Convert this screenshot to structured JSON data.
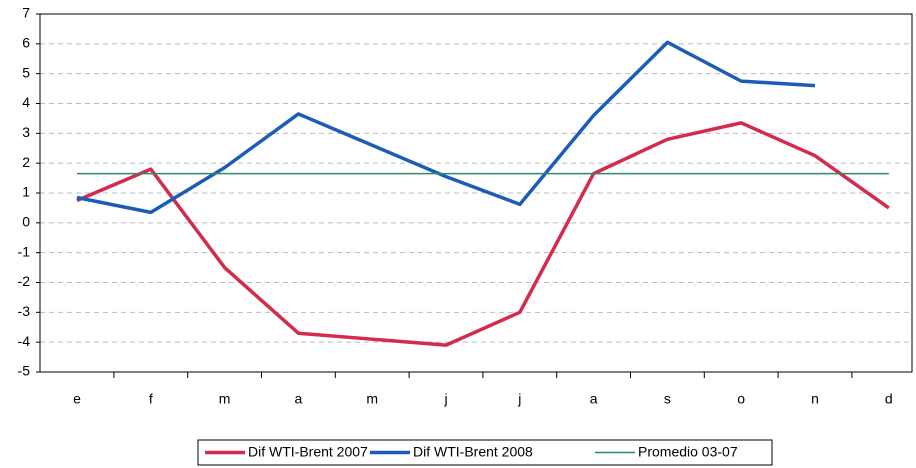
{
  "chart_data": {
    "type": "line",
    "categories": [
      "e",
      "f",
      "m",
      "a",
      "m",
      "j",
      "j",
      "a",
      "s",
      "o",
      "n",
      "d"
    ],
    "series": [
      {
        "name": "Dif WTI-Brent 2007",
        "color": "#d42a4c",
        "values": [
          0.75,
          1.8,
          -1.5,
          -3.7,
          -3.9,
          -4.1,
          -3.0,
          1.65,
          2.8,
          3.35,
          2.25,
          0.5
        ]
      },
      {
        "name": "Dif WTI-Brent 2008",
        "color": "#1c5cb8",
        "values": [
          0.85,
          0.35,
          1.85,
          3.65,
          2.6,
          1.55,
          0.62,
          3.6,
          6.05,
          4.75,
          4.6,
          null
        ]
      },
      {
        "name": "Promedio 03-07",
        "color": "#2b8a6c",
        "values": [
          1.65,
          1.65,
          1.65,
          1.65,
          1.65,
          1.65,
          1.65,
          1.65,
          1.65,
          1.65,
          1.65,
          1.65
        ]
      }
    ],
    "ylim": [
      -5,
      7
    ],
    "yticks": [
      -5,
      -4,
      -3,
      -2,
      -1,
      0,
      1,
      2,
      3,
      4,
      5,
      6,
      7
    ],
    "grid": true,
    "legend": "bottom"
  }
}
